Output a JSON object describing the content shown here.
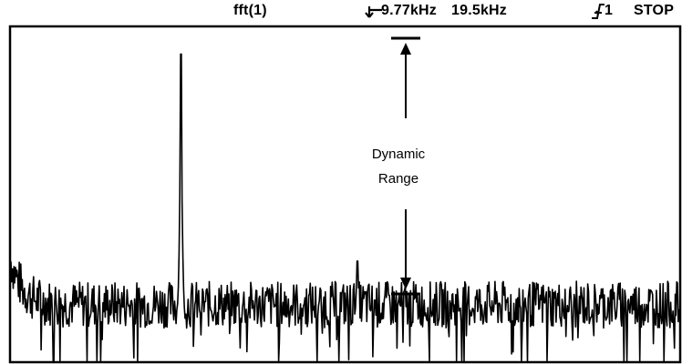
{
  "header": {
    "function_label": "fft(1)",
    "marker_freq": "9.77kHz",
    "span_freq": "19.5kHz",
    "trigger_source": "1",
    "run_state": "STOP"
  },
  "annotation": {
    "line1": "Dynamic",
    "line2": "Range"
  },
  "chart_data": {
    "type": "line",
    "title": "",
    "xlabel": "",
    "ylabel": "",
    "xlim": [
      0,
      19.5
    ],
    "ylim": [
      0,
      100
    ],
    "grid": false,
    "x_unit": "kHz",
    "series": [
      {
        "noise_floor": 17,
        "noise_amplitude": 7,
        "dc_level": 30,
        "peaks": [
          {
            "x": 4.96,
            "y": 92
          },
          {
            "x": 10.11,
            "y": 30
          }
        ]
      }
    ]
  }
}
